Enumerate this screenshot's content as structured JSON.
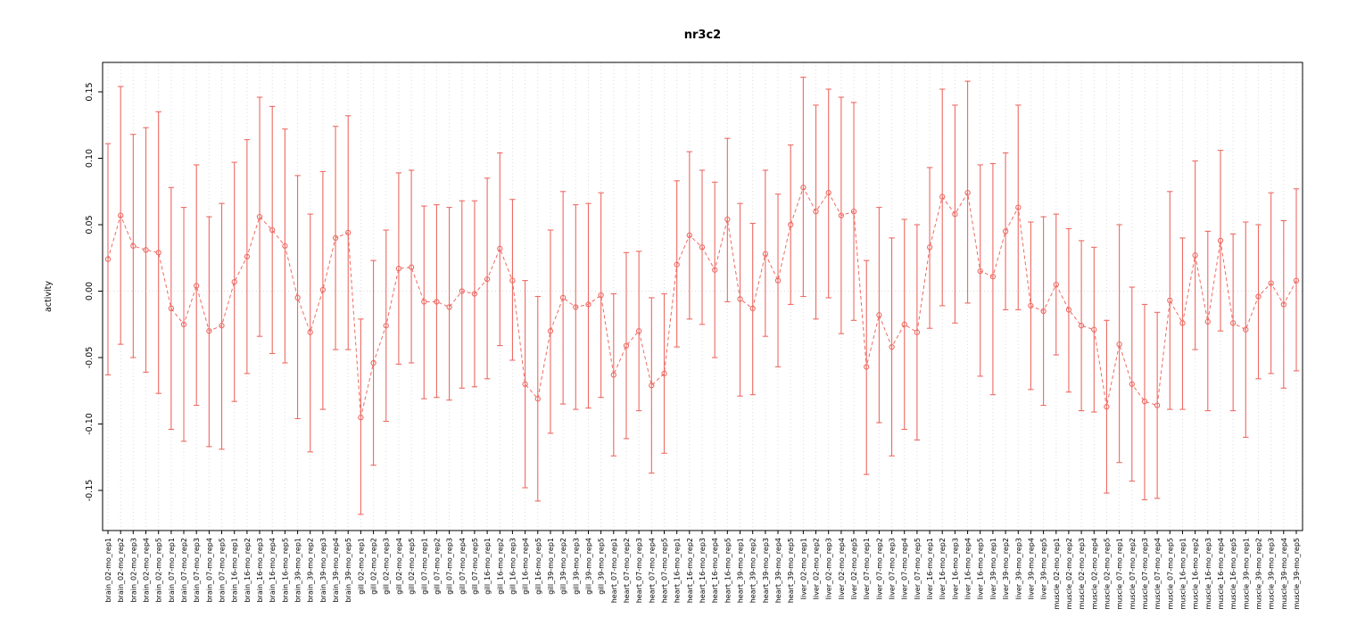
{
  "chart_data": {
    "type": "scatter",
    "subtype": "point-estimates-with-error-bars-connected-by-dashed-line",
    "title": "nr3c2",
    "xlabel": "",
    "ylabel": "activity",
    "ylim": [
      -0.18,
      0.178
    ],
    "yticks": [
      -0.15,
      -0.1,
      -0.05,
      0.0,
      0.05,
      0.1,
      0.15
    ],
    "ytick_labels": [
      "-0.15",
      "-0.10",
      "-0.05",
      "0.00",
      "0.05",
      "0.10",
      "0.15"
    ],
    "grid": {
      "vertical_dotted_per_sample": true,
      "horizontal_zero_dotted": true
    },
    "legend": "none",
    "marker": "open-circle",
    "line_style": "dashed",
    "colors": {
      "series": "#ee6a63",
      "grid": "#dcdcdc",
      "axis": "#000000",
      "background": "#ffffff"
    },
    "samples": [
      {
        "label": "brain_02-mo_rep1",
        "value": 0.024,
        "lo": -0.063,
        "hi": 0.111
      },
      {
        "label": "brain_02-mo_rep2",
        "value": 0.057,
        "lo": -0.04,
        "hi": 0.154
      },
      {
        "label": "brain_02-mo_rep3",
        "value": 0.034,
        "lo": -0.05,
        "hi": 0.118
      },
      {
        "label": "brain_02-mo_rep4",
        "value": 0.031,
        "lo": -0.061,
        "hi": 0.123
      },
      {
        "label": "brain_02-mo_rep5",
        "value": 0.029,
        "lo": -0.077,
        "hi": 0.135
      },
      {
        "label": "brain_07-mo_rep1",
        "value": -0.013,
        "lo": -0.104,
        "hi": 0.078
      },
      {
        "label": "brain_07-mo_rep2",
        "value": -0.025,
        "lo": -0.113,
        "hi": 0.063
      },
      {
        "label": "brain_07-mo_rep3",
        "value": 0.004,
        "lo": -0.086,
        "hi": 0.095
      },
      {
        "label": "brain_07-mo_rep4",
        "value": -0.03,
        "lo": -0.117,
        "hi": 0.056
      },
      {
        "label": "brain_07-mo_rep5",
        "value": -0.026,
        "lo": -0.119,
        "hi": 0.066
      },
      {
        "label": "brain_16-mo_rep1",
        "value": 0.007,
        "lo": -0.083,
        "hi": 0.097
      },
      {
        "label": "brain_16-mo_rep2",
        "value": 0.026,
        "lo": -0.062,
        "hi": 0.114
      },
      {
        "label": "brain_16-mo_rep3",
        "value": 0.056,
        "lo": -0.034,
        "hi": 0.146
      },
      {
        "label": "brain_16-mo_rep4",
        "value": 0.046,
        "lo": -0.047,
        "hi": 0.139
      },
      {
        "label": "brain_16-mo_rep5",
        "value": 0.034,
        "lo": -0.054,
        "hi": 0.122
      },
      {
        "label": "brain_39-mo_rep1",
        "value": -0.005,
        "lo": -0.096,
        "hi": 0.087
      },
      {
        "label": "brain_39-mo_rep2",
        "value": -0.031,
        "lo": -0.121,
        "hi": 0.058
      },
      {
        "label": "brain_39-mo_rep3",
        "value": 0.001,
        "lo": -0.089,
        "hi": 0.09
      },
      {
        "label": "brain_39-mo_rep4",
        "value": 0.04,
        "lo": -0.044,
        "hi": 0.124
      },
      {
        "label": "brain_39-mo_rep5",
        "value": 0.044,
        "lo": -0.044,
        "hi": 0.132
      },
      {
        "label": "gill_02-mo_rep1",
        "value": -0.095,
        "lo": -0.168,
        "hi": -0.021
      },
      {
        "label": "gill_02-mo_rep2",
        "value": -0.054,
        "lo": -0.131,
        "hi": 0.023
      },
      {
        "label": "gill_02-mo_rep3",
        "value": -0.026,
        "lo": -0.098,
        "hi": 0.046
      },
      {
        "label": "gill_02-mo_rep4",
        "value": 0.017,
        "lo": -0.055,
        "hi": 0.089
      },
      {
        "label": "gill_02-mo_rep5",
        "value": 0.018,
        "lo": -0.054,
        "hi": 0.091
      },
      {
        "label": "gill_07-mo_rep1",
        "value": -0.008,
        "lo": -0.081,
        "hi": 0.064
      },
      {
        "label": "gill_07-mo_rep2",
        "value": -0.008,
        "lo": -0.08,
        "hi": 0.065
      },
      {
        "label": "gill_07-mo_rep3",
        "value": -0.012,
        "lo": -0.082,
        "hi": 0.063
      },
      {
        "label": "gill_07-mo_rep4",
        "value": 0.0,
        "lo": -0.073,
        "hi": 0.068
      },
      {
        "label": "gill_07-mo_rep5",
        "value": -0.002,
        "lo": -0.072,
        "hi": 0.068
      },
      {
        "label": "gill_16-mo_rep1",
        "value": 0.009,
        "lo": -0.066,
        "hi": 0.085
      },
      {
        "label": "gill_16-mo_rep2",
        "value": 0.032,
        "lo": -0.041,
        "hi": 0.104
      },
      {
        "label": "gill_16-mo_rep3",
        "value": 0.008,
        "lo": -0.052,
        "hi": 0.069
      },
      {
        "label": "gill_16-mo_rep4",
        "value": -0.07,
        "lo": -0.148,
        "hi": 0.008
      },
      {
        "label": "gill_16-mo_rep5",
        "value": -0.081,
        "lo": -0.158,
        "hi": -0.004
      },
      {
        "label": "gill_39-mo_rep1",
        "value": -0.03,
        "lo": -0.107,
        "hi": 0.046
      },
      {
        "label": "gill_39-mo_rep2",
        "value": -0.005,
        "lo": -0.085,
        "hi": 0.075
      },
      {
        "label": "gill_39-mo_rep3",
        "value": -0.012,
        "lo": -0.089,
        "hi": 0.065
      },
      {
        "label": "gill_39-mo_rep4",
        "value": -0.01,
        "lo": -0.088,
        "hi": 0.066
      },
      {
        "label": "gill_39-mo_rep5",
        "value": -0.003,
        "lo": -0.08,
        "hi": 0.074
      },
      {
        "label": "heart_07-mo_rep1",
        "value": -0.063,
        "lo": -0.124,
        "hi": -0.002
      },
      {
        "label": "heart_07-mo_rep2",
        "value": -0.041,
        "lo": -0.111,
        "hi": 0.029
      },
      {
        "label": "heart_07-mo_rep3",
        "value": -0.03,
        "lo": -0.09,
        "hi": 0.03
      },
      {
        "label": "heart_07-mo_rep4",
        "value": -0.071,
        "lo": -0.137,
        "hi": -0.005
      },
      {
        "label": "heart_07-mo_rep5",
        "value": -0.062,
        "lo": -0.122,
        "hi": -0.002
      },
      {
        "label": "heart_16-mo_rep1",
        "value": 0.02,
        "lo": -0.042,
        "hi": 0.083
      },
      {
        "label": "heart_16-mo_rep2",
        "value": 0.042,
        "lo": -0.021,
        "hi": 0.105
      },
      {
        "label": "heart_16-mo_rep3",
        "value": 0.033,
        "lo": -0.025,
        "hi": 0.091
      },
      {
        "label": "heart_16-mo_rep4",
        "value": 0.016,
        "lo": -0.05,
        "hi": 0.082
      },
      {
        "label": "heart_16-mo_rep5",
        "value": 0.054,
        "lo": -0.008,
        "hi": 0.115
      },
      {
        "label": "heart_39-mo_rep1",
        "value": -0.006,
        "lo": -0.079,
        "hi": 0.066
      },
      {
        "label": "heart_39-mo_rep2",
        "value": -0.013,
        "lo": -0.078,
        "hi": 0.051
      },
      {
        "label": "heart_39-mo_rep3",
        "value": 0.028,
        "lo": -0.034,
        "hi": 0.091
      },
      {
        "label": "heart_39-mo_rep4",
        "value": 0.008,
        "lo": -0.057,
        "hi": 0.073
      },
      {
        "label": "heart_39-mo_rep5",
        "value": 0.05,
        "lo": -0.01,
        "hi": 0.11
      },
      {
        "label": "liver_02-mo_rep1",
        "value": 0.078,
        "lo": -0.004,
        "hi": 0.161
      },
      {
        "label": "liver_02-mo_rep2",
        "value": 0.06,
        "lo": -0.021,
        "hi": 0.14
      },
      {
        "label": "liver_02-mo_rep3",
        "value": 0.074,
        "lo": -0.005,
        "hi": 0.152
      },
      {
        "label": "liver_02-mo_rep4",
        "value": 0.057,
        "lo": -0.032,
        "hi": 0.146
      },
      {
        "label": "liver_02-mo_rep5",
        "value": 0.06,
        "lo": -0.022,
        "hi": 0.142
      },
      {
        "label": "liver_07-mo_rep1",
        "value": -0.057,
        "lo": -0.138,
        "hi": 0.023
      },
      {
        "label": "liver_07-mo_rep2",
        "value": -0.018,
        "lo": -0.099,
        "hi": 0.063
      },
      {
        "label": "liver_07-mo_rep3",
        "value": -0.042,
        "lo": -0.124,
        "hi": 0.04
      },
      {
        "label": "liver_07-mo_rep4",
        "value": -0.025,
        "lo": -0.104,
        "hi": 0.054
      },
      {
        "label": "liver_07-mo_rep5",
        "value": -0.031,
        "lo": -0.112,
        "hi": 0.05
      },
      {
        "label": "liver_16-mo_rep1",
        "value": 0.033,
        "lo": -0.028,
        "hi": 0.093
      },
      {
        "label": "liver_16-mo_rep2",
        "value": 0.071,
        "lo": -0.011,
        "hi": 0.152
      },
      {
        "label": "liver_16-mo_rep3",
        "value": 0.058,
        "lo": -0.024,
        "hi": 0.14
      },
      {
        "label": "liver_16-mo_rep4",
        "value": 0.074,
        "lo": -0.009,
        "hi": 0.158
      },
      {
        "label": "liver_16-mo_rep5",
        "value": 0.015,
        "lo": -0.064,
        "hi": 0.095
      },
      {
        "label": "liver_39-mo_rep1",
        "value": 0.011,
        "lo": -0.078,
        "hi": 0.096
      },
      {
        "label": "liver_39-mo_rep2",
        "value": 0.045,
        "lo": -0.014,
        "hi": 0.104
      },
      {
        "label": "liver_39-mo_rep3",
        "value": 0.063,
        "lo": -0.014,
        "hi": 0.14
      },
      {
        "label": "liver_39-mo_rep4",
        "value": -0.011,
        "lo": -0.074,
        "hi": 0.052
      },
      {
        "label": "liver_39-mo_rep5",
        "value": -0.015,
        "lo": -0.086,
        "hi": 0.056
      },
      {
        "label": "muscle_02-mo_rep1",
        "value": 0.005,
        "lo": -0.048,
        "hi": 0.058
      },
      {
        "label": "muscle_02-mo_rep2",
        "value": -0.014,
        "lo": -0.076,
        "hi": 0.047
      },
      {
        "label": "muscle_02-mo_rep3",
        "value": -0.026,
        "lo": -0.09,
        "hi": 0.038
      },
      {
        "label": "muscle_02-mo_rep4",
        "value": -0.029,
        "lo": -0.091,
        "hi": 0.033
      },
      {
        "label": "muscle_02-mo_rep5",
        "value": -0.087,
        "lo": -0.152,
        "hi": -0.022
      },
      {
        "label": "muscle_07-mo_rep1",
        "value": -0.04,
        "lo": -0.129,
        "hi": 0.05
      },
      {
        "label": "muscle_07-mo_rep2",
        "value": -0.07,
        "lo": -0.143,
        "hi": 0.003
      },
      {
        "label": "muscle_07-mo_rep3",
        "value": -0.083,
        "lo": -0.157,
        "hi": -0.01
      },
      {
        "label": "muscle_07-mo_rep4",
        "value": -0.086,
        "lo": -0.156,
        "hi": -0.016
      },
      {
        "label": "muscle_07-mo_rep5",
        "value": -0.007,
        "lo": -0.089,
        "hi": 0.075
      },
      {
        "label": "muscle_16-mo_rep1",
        "value": -0.024,
        "lo": -0.089,
        "hi": 0.04
      },
      {
        "label": "muscle_16-mo_rep2",
        "value": 0.027,
        "lo": -0.044,
        "hi": 0.098
      },
      {
        "label": "muscle_16-mo_rep3",
        "value": -0.023,
        "lo": -0.09,
        "hi": 0.045
      },
      {
        "label": "muscle_16-mo_rep4",
        "value": 0.038,
        "lo": -0.03,
        "hi": 0.106
      },
      {
        "label": "muscle_16-mo_rep5",
        "value": -0.024,
        "lo": -0.09,
        "hi": 0.043
      },
      {
        "label": "muscle_39-mo_rep1",
        "value": -0.029,
        "lo": -0.11,
        "hi": 0.052
      },
      {
        "label": "muscle_39-mo_rep2",
        "value": -0.004,
        "lo": -0.066,
        "hi": 0.05
      },
      {
        "label": "muscle_39-mo_rep3",
        "value": 0.006,
        "lo": -0.062,
        "hi": 0.074
      },
      {
        "label": "muscle_39-mo_rep4",
        "value": -0.01,
        "lo": -0.073,
        "hi": 0.053
      },
      {
        "label": "muscle_39-mo_rep5",
        "value": 0.008,
        "lo": -0.06,
        "hi": 0.077
      }
    ]
  }
}
